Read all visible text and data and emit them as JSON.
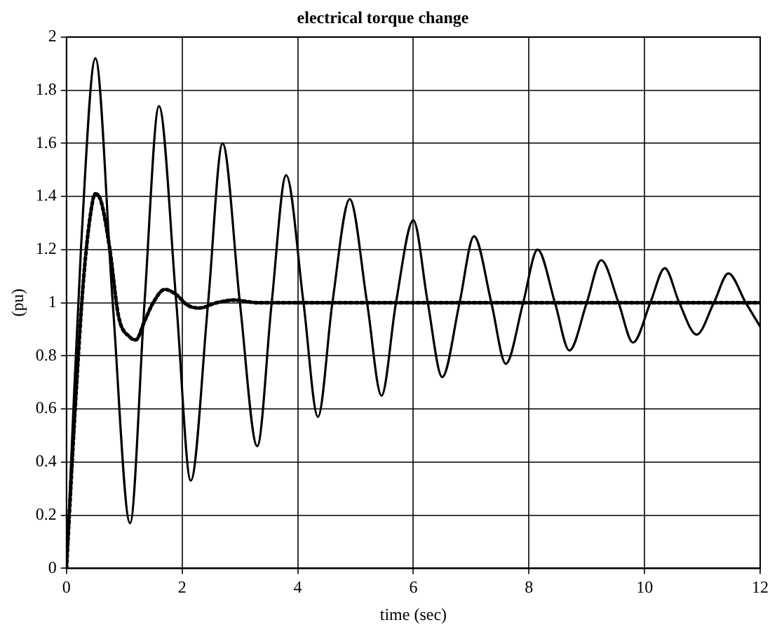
{
  "chart_data": {
    "type": "line",
    "title": "electrical torque change",
    "xlabel": "time (sec)",
    "ylabel": "(pu)",
    "xlim": [
      0,
      12
    ],
    "xticks": [
      0,
      2,
      4,
      6,
      8,
      10,
      12
    ],
    "ylim": [
      0,
      2
    ],
    "yticks": [
      0,
      0.2,
      0.4,
      0.6,
      0.8,
      1,
      1.2,
      1.4,
      1.6,
      1.8,
      2
    ],
    "grid": true,
    "marker": "none",
    "series": [
      {
        "color": "#000000",
        "line_style": "solid",
        "x": [
          0,
          0.1,
          0.25,
          0.5,
          0.8,
          1.1,
          1.35,
          1.6,
          1.9,
          2.15,
          2.45,
          2.7,
          3.0,
          3.3,
          3.55,
          3.8,
          4.1,
          4.35,
          4.6,
          4.9,
          5.2,
          5.45,
          5.7,
          6.0,
          6.25,
          6.5,
          6.8,
          7.05,
          7.35,
          7.6,
          7.9,
          8.15,
          8.45,
          8.7,
          9.0,
          9.25,
          9.55,
          9.8,
          10.1,
          10.35,
          10.6,
          10.9,
          11.2,
          11.45,
          11.75,
          12
        ],
        "values": [
          0,
          0.5,
          1.2,
          1.92,
          1,
          0.17,
          1,
          1.74,
          1,
          0.33,
          1,
          1.6,
          1,
          0.46,
          1,
          1.48,
          1,
          0.57,
          1,
          1.39,
          1,
          0.65,
          1,
          1.31,
          1,
          0.72,
          1,
          1.25,
          1,
          0.77,
          1,
          1.2,
          1,
          0.82,
          1,
          1.16,
          1,
          0.85,
          1,
          1.13,
          1,
          0.88,
          1,
          1.11,
          1,
          0.91
        ]
      },
      {
        "color": "#000000",
        "line_style": "dotted",
        "x": [
          0,
          0.15,
          0.3,
          0.45,
          0.5,
          0.6,
          0.75,
          0.9,
          1.1,
          1.2,
          1.35,
          1.5,
          1.7,
          1.9,
          2.1,
          2.3,
          2.6,
          2.9,
          3.3,
          12
        ],
        "values": [
          0,
          0.6,
          1.1,
          1.38,
          1.41,
          1.38,
          1.2,
          0.95,
          0.87,
          0.86,
          0.93,
          1.0,
          1.05,
          1.03,
          0.99,
          0.98,
          1.0,
          1.01,
          1.0,
          1.0
        ]
      }
    ]
  }
}
